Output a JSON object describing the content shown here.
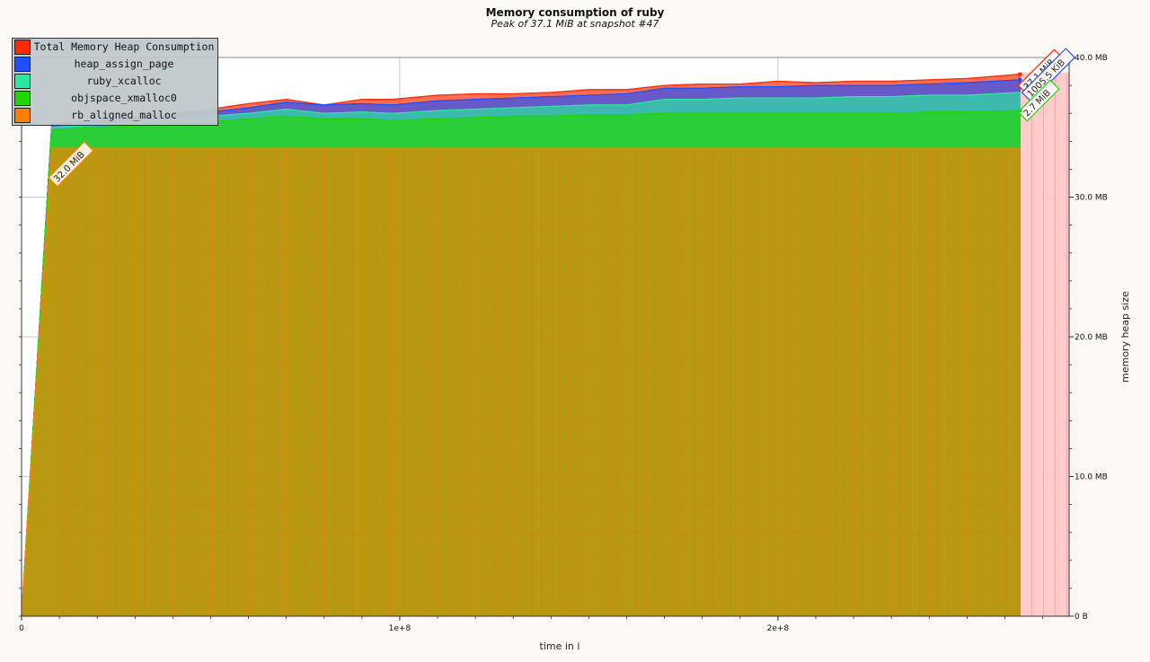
{
  "chart_data": {
    "type": "area",
    "title": "Memory consumption of ruby",
    "subtitle": "Peak of 37.1 MiB at snapshot #47",
    "xlabel": "time in i",
    "ylabel": "memory heap size",
    "x_ticks": [
      "0",
      "1e+8",
      "2e+8"
    ],
    "x_tick_values": [
      0,
      100000000,
      200000000
    ],
    "y_ticks": [
      "0 B",
      "10.0 MB",
      "20.0 MB",
      "30.0 MB",
      "40.0 MB"
    ],
    "y_tick_values": [
      0,
      10,
      20,
      30,
      40
    ],
    "xlim": [
      0,
      277000000
    ],
    "ylim": [
      0,
      40
    ],
    "grid": true,
    "legend_position": "top-left",
    "x": [
      0,
      8000000,
      20000000,
      30000000,
      40000000,
      50000000,
      60000000,
      70000000,
      80000000,
      90000000,
      98000000,
      110000000,
      120000000,
      130000000,
      140000000,
      150000000,
      160000000,
      170000000,
      180000000,
      190000000,
      200000000,
      210000000,
      220000000,
      230000000,
      240000000,
      250000000,
      264000000
    ],
    "series": [
      {
        "name": "Total Memory Heap Consumption",
        "color": "#ff2a00",
        "values": [
          0,
          35.3,
          35.5,
          35.7,
          36.0,
          36.3,
          36.7,
          37.0,
          36.6,
          37.0,
          37.0,
          37.3,
          37.4,
          37.4,
          37.5,
          37.7,
          37.7,
          38.0,
          38.1,
          38.1,
          38.3,
          38.2,
          38.3,
          38.3,
          38.4,
          38.5,
          38.8
        ]
      },
      {
        "name": "heap_assign_page",
        "color": "#1f4fff",
        "values": [
          0,
          35.2,
          35.4,
          35.6,
          35.9,
          36.1,
          36.4,
          36.8,
          36.6,
          36.7,
          36.6,
          36.9,
          37.0,
          37.1,
          37.2,
          37.3,
          37.4,
          37.8,
          37.8,
          37.9,
          37.9,
          38.0,
          38.0,
          38.0,
          38.1,
          38.2,
          38.4
        ]
      },
      {
        "name": "ruby_xcalloc",
        "color": "#2be8a0",
        "values": [
          0,
          35.0,
          35.2,
          35.4,
          35.6,
          35.8,
          36.0,
          36.3,
          36.0,
          36.1,
          36.0,
          36.2,
          36.3,
          36.4,
          36.5,
          36.6,
          36.6,
          37.0,
          37.0,
          37.1,
          37.1,
          37.1,
          37.2,
          37.2,
          37.3,
          37.3,
          37.5
        ]
      },
      {
        "name": "objspace_xmalloc0",
        "color": "#20d800",
        "values": [
          0,
          34.8,
          35.0,
          35.1,
          35.3,
          35.4,
          35.6,
          35.8,
          35.6,
          35.6,
          35.5,
          35.6,
          35.7,
          35.8,
          35.8,
          35.9,
          35.9,
          36.0,
          36.0,
          36.0,
          36.0,
          36.0,
          36.0,
          36.0,
          36.1,
          36.1,
          36.2
        ]
      },
      {
        "name": "rb_aligned_malloc",
        "color": "#ff8000",
        "values": [
          0,
          33.5,
          33.5,
          33.5,
          33.5,
          33.5,
          33.5,
          33.5,
          33.5,
          33.5,
          33.5,
          33.5,
          33.5,
          33.5,
          33.5,
          33.5,
          33.5,
          33.5,
          33.5,
          33.5,
          33.5,
          33.5,
          33.5,
          33.5,
          33.5,
          33.5,
          33.5
        ]
      }
    ],
    "callouts": [
      {
        "text": "32.0 MiB",
        "color": "#ff8000",
        "series": "rb_aligned_malloc"
      },
      {
        "text": "37.1 MiB",
        "color": "#ff2a00",
        "series": "Total Memory Heap Consumption"
      },
      {
        "text": "1005.5 KiB",
        "color": "#1f4fff",
        "series": "heap_assign_page"
      },
      {
        "text": "2.7 MiB",
        "color": "#20d800",
        "series": "objspace_xmalloc0"
      }
    ]
  }
}
